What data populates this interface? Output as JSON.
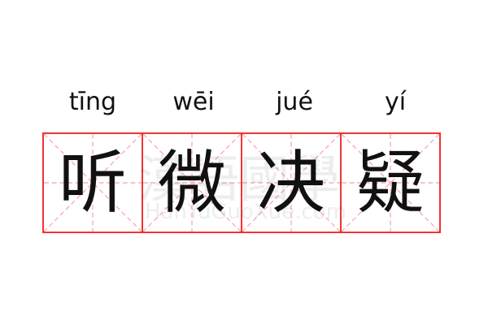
{
  "idiom": [
    {
      "pinyin": "tīng",
      "hanzi": "听"
    },
    {
      "pinyin": "wēi",
      "hanzi": "微"
    },
    {
      "pinyin": "jué",
      "hanzi": "决"
    },
    {
      "pinyin": "yí",
      "hanzi": "疑"
    }
  ],
  "watermark": {
    "cn": "漢語國學",
    "en": "HanYuGuoXue.com"
  },
  "colors": {
    "grid": "#f03333",
    "guide": "#f7a0a0",
    "text": "#111111"
  }
}
